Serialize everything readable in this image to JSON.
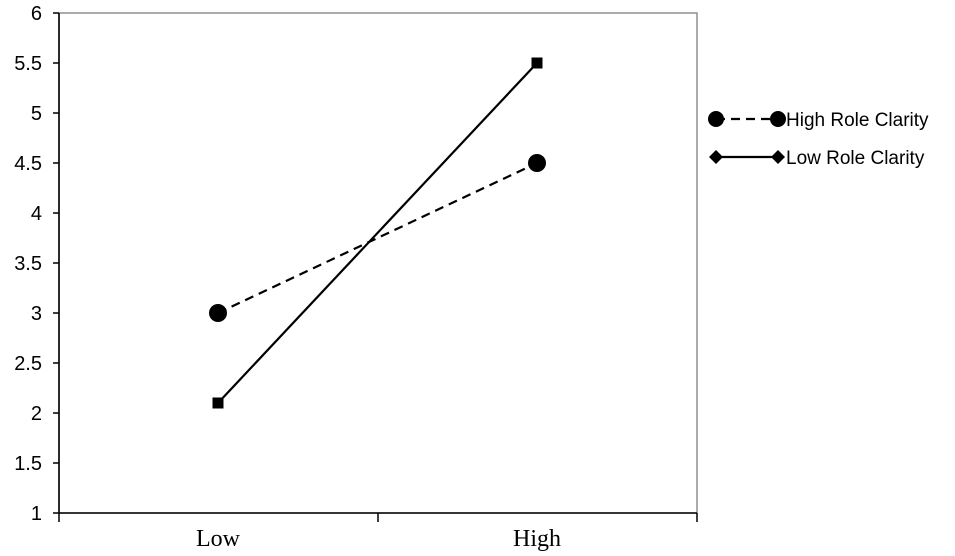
{
  "chart_data": {
    "type": "line",
    "title": "",
    "xlabel": "",
    "ylabel": "",
    "categories": [
      "Low",
      "High"
    ],
    "ylim": [
      1,
      6
    ],
    "yticks": [
      "1",
      "1.5",
      "2",
      "2.5",
      "3",
      "3.5",
      "4",
      "4.5",
      "5",
      "5.5",
      "6"
    ],
    "grid": false,
    "legend_position": "right",
    "series": [
      {
        "name": "High Role Clarity",
        "values": [
          3.0,
          4.5
        ],
        "line": "dashed",
        "marker": "circle",
        "legend_marker": "circle"
      },
      {
        "name": "Low Role Clarity",
        "values": [
          2.1,
          5.5
        ],
        "line": "solid",
        "marker": "square",
        "legend_marker": "diamond"
      }
    ],
    "colors": {
      "line": "#000000",
      "background": "#ffffff"
    }
  }
}
